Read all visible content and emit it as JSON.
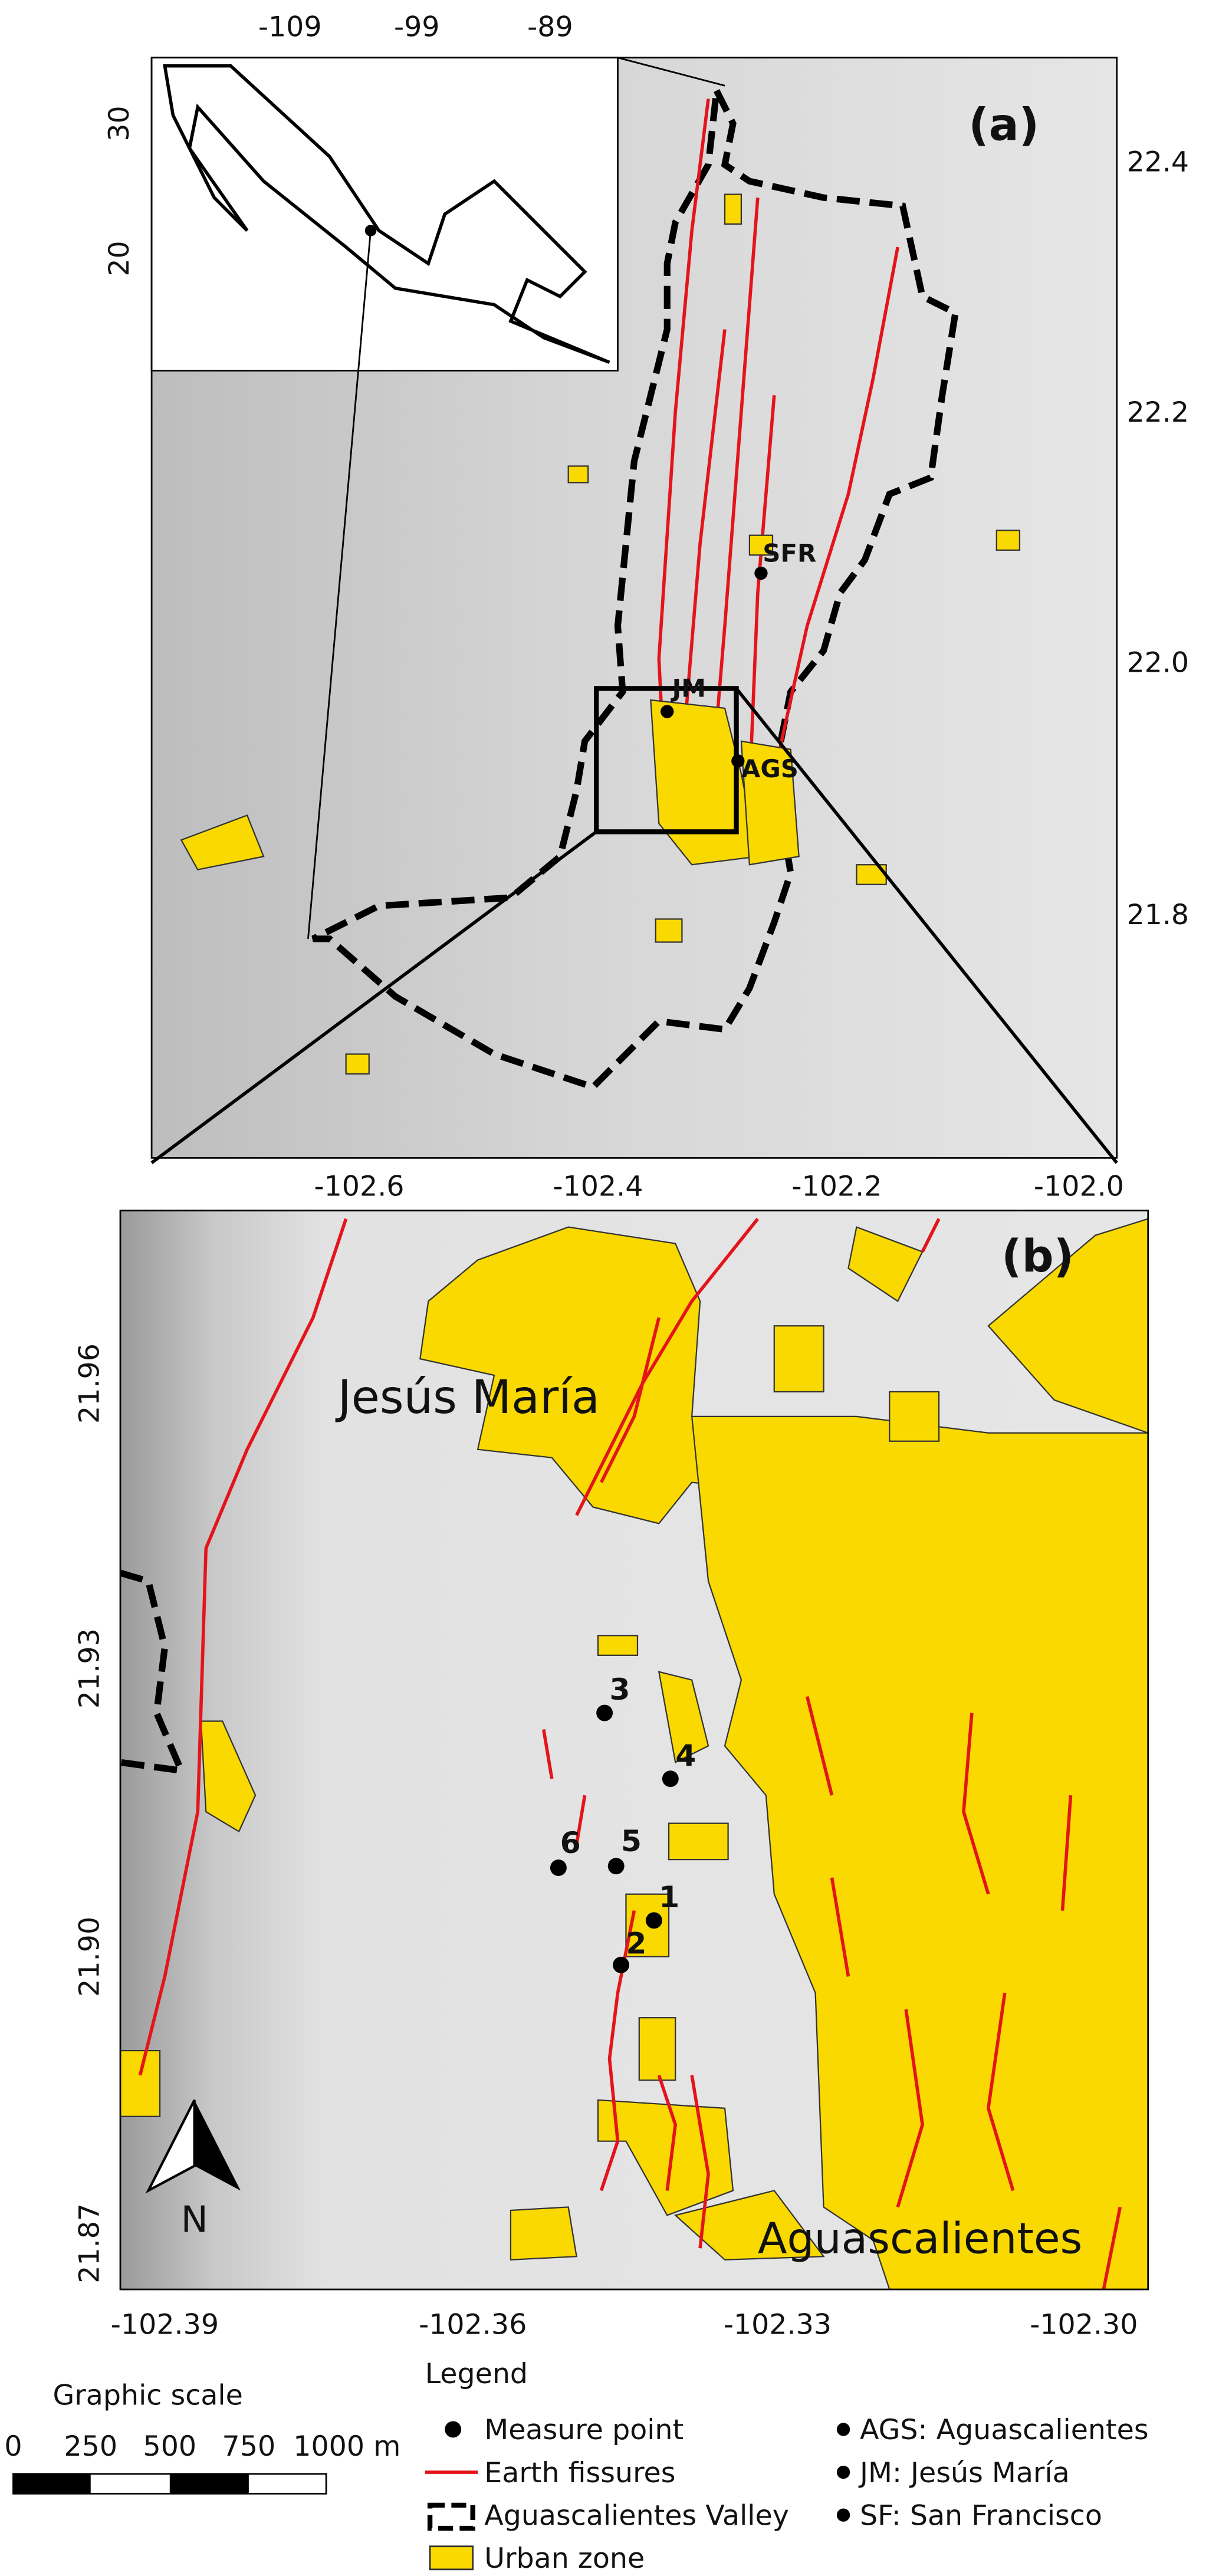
{
  "panel_a": {
    "label": "(a)",
    "inset_x_ticks": [
      "-109",
      "-99",
      "-89"
    ],
    "inset_y_ticks": [
      "30",
      "20"
    ],
    "lat_ticks": [
      "22.4",
      "22.2",
      "22.0",
      "21.8"
    ],
    "lon_ticks": [
      "-102.6",
      "-102.4",
      "-102.2",
      "-102.0"
    ],
    "places": [
      "SFR",
      "JM",
      "AGS"
    ]
  },
  "panel_b": {
    "label": "(b)",
    "lat_ticks": [
      "21.96",
      "21.93",
      "21.90",
      "21.87"
    ],
    "lon_ticks": [
      "-102.39",
      "-102.36",
      "-102.33",
      "-102.30"
    ],
    "places": [
      "Jesús María",
      "Aguascalientes"
    ],
    "points": [
      "1",
      "2",
      "3",
      "4",
      "5",
      "6"
    ],
    "north": "N"
  },
  "scale": {
    "title": "Graphic scale",
    "labels": [
      "0",
      "250",
      "500",
      "750",
      "1000 m"
    ]
  },
  "legend": {
    "title": "Legend",
    "items": [
      "Measure point",
      "Earth fissures",
      "Aguascalientes Valley",
      "Urban zone"
    ],
    "abbreviations": [
      "AGS: Aguascalientes",
      "JM: Jesús María",
      "SF: San Francisco"
    ]
  }
}
